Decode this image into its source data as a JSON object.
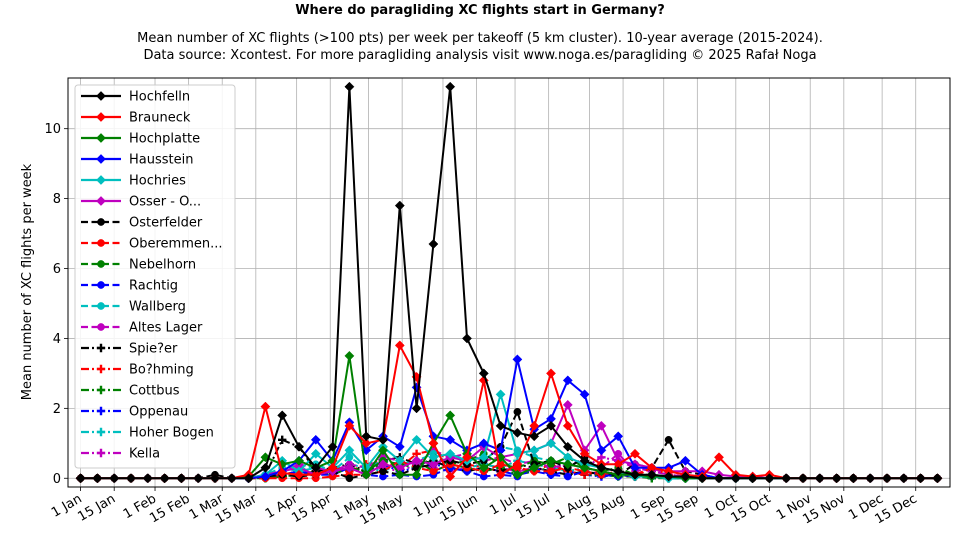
{
  "chart_data": {
    "type": "line",
    "title": "Where do paragliding XC flights start in Germany?",
    "subtitle_lines": [
      "Mean number of XC flights (>100 pts) per week per takeoff (5 km cluster). 10-year average (2015-2024).",
      "Data source: Xcontest. For more paragliding analysis visit www.noga.es/paragliding © 2025 Rafał Noga"
    ],
    "xlabel": "",
    "ylabel": "Mean number of XC flights per week",
    "xlim": [
      -0.75,
      51.75
    ],
    "ylim": [
      -0.25,
      11.45
    ],
    "grid": true,
    "legend_placement": "upper-left",
    "yticks": [
      0,
      2,
      4,
      6,
      8,
      10
    ],
    "xticks": [
      {
        "week": 0.0,
        "label": "1 Jan"
      },
      {
        "week": 2.0,
        "label": "15 Jan"
      },
      {
        "week": 4.43,
        "label": "1 Feb"
      },
      {
        "week": 6.43,
        "label": "15 Feb"
      },
      {
        "week": 8.43,
        "label": "1 Mar"
      },
      {
        "week": 10.43,
        "label": "15 Mar"
      },
      {
        "week": 12.86,
        "label": "1 Apr"
      },
      {
        "week": 14.86,
        "label": "15 Apr"
      },
      {
        "week": 17.14,
        "label": "1 May"
      },
      {
        "week": 19.14,
        "label": "15 May"
      },
      {
        "week": 21.57,
        "label": "1 Jun"
      },
      {
        "week": 23.57,
        "label": "15 Jun"
      },
      {
        "week": 25.86,
        "label": "1 Jul"
      },
      {
        "week": 27.86,
        "label": "15 Jul"
      },
      {
        "week": 30.29,
        "label": "1 Aug"
      },
      {
        "week": 32.29,
        "label": "15 Aug"
      },
      {
        "week": 34.71,
        "label": "1 Sep"
      },
      {
        "week": 36.71,
        "label": "15 Sep"
      },
      {
        "week": 39.0,
        "label": "1 Oct"
      },
      {
        "week": 41.0,
        "label": "15 Oct"
      },
      {
        "week": 43.43,
        "label": "1 Nov"
      },
      {
        "week": 45.43,
        "label": "15 Nov"
      },
      {
        "week": 47.71,
        "label": "1 Dec"
      },
      {
        "week": 49.71,
        "label": "15 Dec"
      }
    ],
    "series": [
      {
        "name": "Hochfelln",
        "color": "#000000",
        "dash": "solid",
        "marker": "diamond",
        "values": [
          0,
          0,
          0,
          0,
          0,
          0,
          0,
          0,
          0,
          0,
          0,
          0.3,
          1.8,
          0.9,
          0.3,
          0.9,
          11.2,
          1.2,
          1.1,
          7.8,
          2.0,
          6.7,
          11.2,
          4.0,
          3.0,
          1.5,
          1.3,
          1.2,
          1.5,
          0.9,
          0.5,
          0.3,
          0.2,
          0.1,
          0.1,
          0.05,
          0.05,
          0,
          0,
          0,
          0,
          0,
          0,
          0,
          0,
          0,
          0,
          0,
          0,
          0,
          0,
          0
        ]
      },
      {
        "name": "Brauneck",
        "color": "#ff0000",
        "dash": "solid",
        "marker": "diamond",
        "values": [
          0,
          0,
          0,
          0,
          0,
          0,
          0,
          0,
          0,
          0,
          0.1,
          2.05,
          0.15,
          0.1,
          0.1,
          0.3,
          1.5,
          1.0,
          1.1,
          3.8,
          2.9,
          1.0,
          0.05,
          0.6,
          2.8,
          0.1,
          0.4,
          1.5,
          3.0,
          1.5,
          0.7,
          0.4,
          0.4,
          0.7,
          0.3,
          0.2,
          0.1,
          0.05,
          0.6,
          0.1,
          0.05,
          0.1,
          0,
          0,
          0,
          0,
          0,
          0,
          0,
          0,
          0,
          0
        ]
      },
      {
        "name": "Hochplatte",
        "color": "#008000",
        "dash": "solid",
        "marker": "diamond",
        "values": [
          0,
          0,
          0,
          0,
          0,
          0,
          0,
          0,
          0,
          0,
          0.05,
          0.6,
          0.4,
          0.5,
          0.3,
          0.5,
          3.5,
          0.1,
          0.8,
          0.1,
          0.1,
          1.0,
          1.8,
          0.7,
          0.3,
          0.6,
          0.1,
          0.3,
          0.5,
          0.4,
          0.3,
          0.2,
          0.1,
          0.1,
          0.05,
          0.05,
          0,
          0,
          0,
          0,
          0,
          0,
          0,
          0,
          0,
          0,
          0,
          0,
          0,
          0,
          0,
          0
        ]
      },
      {
        "name": "Hausstein",
        "color": "#0000ff",
        "dash": "solid",
        "marker": "diamond",
        "values": [
          0,
          0,
          0,
          0,
          0,
          0,
          0,
          0,
          0,
          0,
          0,
          0.05,
          0.2,
          0.5,
          1.1,
          0.5,
          1.6,
          0.8,
          1.2,
          0.9,
          2.6,
          1.2,
          1.1,
          0.8,
          1.0,
          0.8,
          3.4,
          1.4,
          1.7,
          2.8,
          2.4,
          0.8,
          1.2,
          0.3,
          0.3,
          0.3,
          0.5,
          0.1,
          0,
          0,
          0,
          0,
          0,
          0,
          0,
          0,
          0,
          0,
          0,
          0,
          0,
          0
        ]
      },
      {
        "name": "Hochries",
        "color": "#00bfbf",
        "dash": "solid",
        "marker": "diamond",
        "values": [
          0,
          0,
          0,
          0,
          0,
          0,
          0,
          0,
          0,
          0,
          0,
          0.1,
          0.5,
          0.2,
          0.7,
          0.3,
          0.8,
          0.3,
          0.9,
          0.5,
          1.1,
          0.6,
          0.7,
          0.5,
          0.6,
          2.4,
          0.7,
          0.8,
          1.0,
          0.6,
          0.4,
          0.3,
          0.2,
          0.05,
          0.05,
          0,
          0,
          0,
          0,
          0,
          0,
          0,
          0,
          0,
          0,
          0,
          0,
          0,
          0,
          0,
          0,
          0
        ]
      },
      {
        "name": "Osser - O...",
        "color": "#bf00bf",
        "dash": "solid",
        "marker": "diamond",
        "values": [
          0,
          0,
          0,
          0,
          0,
          0,
          0,
          0,
          0,
          0,
          0,
          0.1,
          0.2,
          0.3,
          0.1,
          0.2,
          0.3,
          0.1,
          0.4,
          0.3,
          0.5,
          0.4,
          0.6,
          0.5,
          0.9,
          0.6,
          0.7,
          0.8,
          1.0,
          2.1,
          0.8,
          1.5,
          0.5,
          0.4,
          0.3,
          0.2,
          0.2,
          0.2,
          0.1,
          0.05,
          0.05,
          0,
          0,
          0,
          0,
          0,
          0,
          0,
          0,
          0,
          0,
          0
        ]
      },
      {
        "name": "Osterfelder",
        "color": "#000000",
        "dash": "dashed",
        "marker": "circle",
        "values": [
          0,
          0,
          0,
          0,
          0,
          0,
          0,
          0,
          0.1,
          0,
          0,
          0.05,
          0.1,
          0.05,
          0.1,
          0.2,
          0,
          0.1,
          0.2,
          0.1,
          0.3,
          0.4,
          0.5,
          0.4,
          0.5,
          0.9,
          1.9,
          0.4,
          0.5,
          0.3,
          0.6,
          0.2,
          0.1,
          0.4,
          0.3,
          1.1,
          0.2,
          0.1,
          0,
          0,
          0,
          0,
          0,
          0,
          0,
          0,
          0,
          0,
          0,
          0,
          0,
          0
        ]
      },
      {
        "name": "Oberemmen...",
        "color": "#ff0000",
        "dash": "dashed",
        "marker": "circle",
        "values": [
          0,
          0,
          0,
          0,
          0,
          0,
          0,
          0,
          0,
          0,
          0,
          0,
          0,
          0,
          0,
          0.05,
          0.1,
          0.1,
          0.2,
          0.5,
          0.3,
          0.2,
          0.4,
          0.3,
          0.2,
          0.4,
          0.3,
          0.2,
          0.2,
          0.3,
          0.2,
          0.1,
          0.2,
          0.1,
          0.3,
          0.2,
          0.1,
          0,
          0,
          0,
          0,
          0,
          0,
          0,
          0,
          0,
          0,
          0,
          0,
          0,
          0,
          0
        ]
      },
      {
        "name": "Nebelhorn",
        "color": "#008000",
        "dash": "dashed",
        "marker": "circle",
        "values": [
          0,
          0,
          0,
          0,
          0,
          0,
          0,
          0,
          0,
          0,
          0,
          0,
          0.05,
          0.1,
          0.1,
          0.2,
          0.3,
          0.2,
          0.5,
          0.4,
          0.3,
          0.6,
          0.4,
          0.5,
          0.7,
          0.4,
          0.3,
          0.5,
          0.4,
          0.6,
          0.3,
          0.2,
          0.3,
          0.1,
          0.1,
          0.05,
          0,
          0,
          0,
          0,
          0,
          0,
          0,
          0,
          0,
          0,
          0,
          0,
          0,
          0,
          0,
          0
        ]
      },
      {
        "name": "Rachtig",
        "color": "#0000ff",
        "dash": "dashed",
        "marker": "circle",
        "values": [
          0,
          0,
          0,
          0,
          0,
          0,
          0,
          0,
          0,
          0,
          0,
          0.05,
          0.1,
          0.2,
          0.1,
          0.1,
          0.3,
          0.1,
          0.05,
          0.1,
          0.05,
          0.1,
          0.3,
          0.2,
          0.05,
          0.1,
          0.05,
          0.3,
          0.1,
          0.05,
          0.2,
          0.1,
          0.05,
          0.1,
          0.05,
          0.05,
          0,
          0,
          0,
          0,
          0,
          0,
          0,
          0,
          0,
          0,
          0,
          0,
          0,
          0,
          0,
          0
        ]
      },
      {
        "name": "Wallberg",
        "color": "#00bfbf",
        "dash": "dashed",
        "marker": "circle",
        "values": [
          0,
          0,
          0,
          0,
          0,
          0,
          0,
          0,
          0,
          0,
          0,
          0.1,
          0.3,
          0.2,
          0.4,
          0.2,
          0.6,
          0.3,
          0.5,
          0.4,
          0.5,
          0.7,
          0.4,
          0.6,
          0.5,
          0.9,
          0.8,
          0.6,
          0.5,
          0.4,
          0.3,
          0.2,
          0.1,
          0.05,
          0.05,
          0,
          0,
          0,
          0,
          0,
          0,
          0,
          0,
          0,
          0,
          0,
          0,
          0,
          0,
          0,
          0,
          0
        ]
      },
      {
        "name": "Altes Lager",
        "color": "#bf00bf",
        "dash": "dashed",
        "marker": "circle",
        "values": [
          0,
          0,
          0,
          0,
          0,
          0,
          0,
          0,
          0,
          0,
          0,
          0.1,
          0.2,
          0.4,
          0.3,
          0.2,
          0.4,
          0.3,
          0.6,
          0.5,
          0.4,
          0.8,
          0.6,
          0.7,
          0.5,
          0.6,
          0.4,
          0.5,
          0.3,
          0.4,
          0.5,
          0.3,
          0.7,
          0.2,
          0.3,
          0.1,
          0.05,
          0,
          0,
          0,
          0,
          0,
          0,
          0,
          0,
          0,
          0,
          0,
          0,
          0,
          0,
          0
        ]
      },
      {
        "name": "Spie?er",
        "color": "#000000",
        "dash": "dashdot",
        "marker": "plus",
        "values": [
          0,
          0,
          0,
          0,
          0,
          0,
          0,
          0,
          0,
          0,
          0,
          0.1,
          1.1,
          0.9,
          0.2,
          0.3,
          0.4,
          0.2,
          0.5,
          0.6,
          0.4,
          0.5,
          0.3,
          0.2,
          0.3,
          0.2,
          0.4,
          0.3,
          0.2,
          0.1,
          0.2,
          0.1,
          0.1,
          0.05,
          0.05,
          0,
          0,
          0,
          0,
          0,
          0,
          0,
          0,
          0,
          0,
          0,
          0,
          0,
          0,
          0,
          0,
          0
        ]
      },
      {
        "name": "Bo?hming",
        "color": "#ff0000",
        "dash": "dashdot",
        "marker": "plus",
        "values": [
          0,
          0,
          0,
          0,
          0,
          0,
          0,
          0,
          0,
          0,
          0,
          0.05,
          0.1,
          0.2,
          0.1,
          0.3,
          0.2,
          0.4,
          0.5,
          0.3,
          0.7,
          0.8,
          0.5,
          0.4,
          0.3,
          0.2,
          0.3,
          0.2,
          0.4,
          0.2,
          0.1,
          0.2,
          0.1,
          0.05,
          0.3,
          0.1,
          0.05,
          0,
          0,
          0,
          0,
          0,
          0,
          0,
          0,
          0,
          0,
          0,
          0,
          0,
          0,
          0
        ]
      },
      {
        "name": "Cottbus",
        "color": "#008000",
        "dash": "dashdot",
        "marker": "plus",
        "values": [
          0,
          0,
          0,
          0,
          0,
          0,
          0,
          0,
          0,
          0,
          0,
          0,
          0.05,
          0.1,
          0.2,
          0.1,
          0.3,
          0.2,
          0.4,
          0.3,
          0.5,
          0.2,
          0.4,
          0.3,
          0.2,
          0.3,
          0.1,
          0.2,
          0.3,
          0.2,
          0.1,
          0.1,
          0.05,
          0.05,
          0,
          0,
          0,
          0,
          0,
          0,
          0,
          0,
          0,
          0,
          0,
          0,
          0,
          0,
          0,
          0,
          0,
          0
        ]
      },
      {
        "name": "Oppenau",
        "color": "#0000ff",
        "dash": "dashdot",
        "marker": "plus",
        "values": [
          0,
          0,
          0,
          0,
          0,
          0,
          0,
          0,
          0,
          0,
          0,
          0.05,
          0.1,
          0.2,
          0.1,
          0.2,
          0.3,
          0.2,
          0.4,
          0.2,
          0.3,
          0.4,
          0.3,
          0.2,
          0.3,
          0.2,
          0.1,
          0.2,
          0.1,
          0.2,
          0.1,
          0.05,
          0.1,
          0.05,
          0.05,
          0,
          0,
          0,
          0,
          0,
          0,
          0,
          0,
          0,
          0,
          0,
          0,
          0,
          0,
          0,
          0,
          0
        ]
      },
      {
        "name": "Hoher Bogen",
        "color": "#00bfbf",
        "dash": "dashdot",
        "marker": "plus",
        "values": [
          0,
          0,
          0,
          0,
          0,
          0,
          0,
          0,
          0,
          0,
          0,
          0.05,
          0.1,
          0.2,
          0.3,
          0.2,
          0.4,
          0.3,
          0.2,
          0.4,
          0.3,
          0.5,
          0.4,
          0.3,
          0.4,
          0.3,
          0.5,
          0.4,
          0.3,
          0.2,
          0.3,
          0.2,
          0.1,
          0.05,
          0.05,
          0,
          0,
          0,
          0,
          0,
          0,
          0,
          0,
          0,
          0,
          0,
          0,
          0,
          0,
          0,
          0,
          0
        ]
      },
      {
        "name": "Kella",
        "color": "#bf00bf",
        "dash": "dashdot",
        "marker": "plus",
        "values": [
          0,
          0,
          0,
          0,
          0,
          0,
          0,
          0,
          0,
          0,
          0,
          0.05,
          0.1,
          0.1,
          0.2,
          0.1,
          0.3,
          0.2,
          0.3,
          0.2,
          0.4,
          0.3,
          0.2,
          0.3,
          0.4,
          0.3,
          0.2,
          0.3,
          0.2,
          0.4,
          0.3,
          0.6,
          0.5,
          0.3,
          0.2,
          0.1,
          0.05,
          0,
          0,
          0,
          0,
          0,
          0,
          0,
          0,
          0,
          0,
          0,
          0,
          0,
          0,
          0
        ]
      }
    ]
  }
}
